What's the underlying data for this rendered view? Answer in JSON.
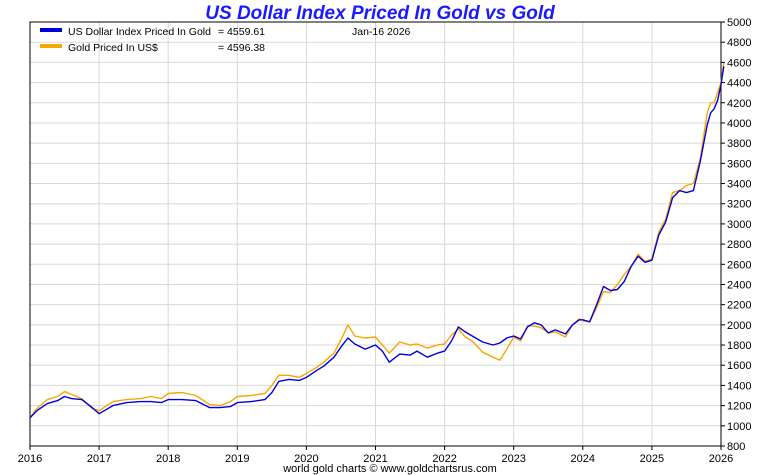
{
  "chart_data": {
    "type": "line",
    "title": "US Dollar Index Priced In Gold vs Gold",
    "date_label": "Jan-16  2026",
    "footer": "world gold charts © www.goldchartsrus.com",
    "xlim": [
      2016,
      2026
    ],
    "ylim": [
      800,
      5000
    ],
    "x_ticks": [
      2016,
      2017,
      2018,
      2019,
      2020,
      2021,
      2022,
      2023,
      2024,
      2025,
      2026
    ],
    "y_ticks": [
      800,
      1000,
      1200,
      1400,
      1600,
      1800,
      2000,
      2200,
      2400,
      2600,
      2800,
      3000,
      3200,
      3400,
      3600,
      3800,
      4000,
      4200,
      4400,
      4600,
      4800,
      5000
    ],
    "grid": true,
    "legend_position": "top-left",
    "colors": {
      "usd_series": "#0000dd",
      "gold_series": "#f5a800",
      "title": "#1a1aff",
      "grid": "#d8d8d8"
    },
    "series": [
      {
        "name": "US Dollar Index Priced In Gold",
        "value_text": "= 4559.61",
        "points": [
          [
            2016.0,
            1080
          ],
          [
            2016.1,
            1150
          ],
          [
            2016.25,
            1220
          ],
          [
            2016.4,
            1250
          ],
          [
            2016.5,
            1290
          ],
          [
            2016.6,
            1270
          ],
          [
            2016.75,
            1260
          ],
          [
            2016.9,
            1180
          ],
          [
            2017.0,
            1120
          ],
          [
            2017.2,
            1200
          ],
          [
            2017.4,
            1230
          ],
          [
            2017.6,
            1240
          ],
          [
            2017.75,
            1240
          ],
          [
            2017.9,
            1230
          ],
          [
            2018.0,
            1260
          ],
          [
            2018.2,
            1260
          ],
          [
            2018.4,
            1250
          ],
          [
            2018.6,
            1180
          ],
          [
            2018.75,
            1180
          ],
          [
            2018.9,
            1190
          ],
          [
            2019.0,
            1230
          ],
          [
            2019.2,
            1240
          ],
          [
            2019.4,
            1260
          ],
          [
            2019.5,
            1330
          ],
          [
            2019.6,
            1440
          ],
          [
            2019.75,
            1460
          ],
          [
            2019.9,
            1450
          ],
          [
            2020.0,
            1480
          ],
          [
            2020.15,
            1550
          ],
          [
            2020.25,
            1590
          ],
          [
            2020.4,
            1680
          ],
          [
            2020.5,
            1780
          ],
          [
            2020.6,
            1870
          ],
          [
            2020.7,
            1810
          ],
          [
            2020.85,
            1760
          ],
          [
            2021.0,
            1800
          ],
          [
            2021.1,
            1740
          ],
          [
            2021.2,
            1630
          ],
          [
            2021.35,
            1710
          ],
          [
            2021.5,
            1700
          ],
          [
            2021.6,
            1740
          ],
          [
            2021.75,
            1680
          ],
          [
            2021.9,
            1720
          ],
          [
            2022.0,
            1740
          ],
          [
            2022.1,
            1840
          ],
          [
            2022.2,
            1980
          ],
          [
            2022.3,
            1930
          ],
          [
            2022.4,
            1890
          ],
          [
            2022.55,
            1830
          ],
          [
            2022.7,
            1800
          ],
          [
            2022.8,
            1820
          ],
          [
            2022.9,
            1870
          ],
          [
            2023.0,
            1890
          ],
          [
            2023.1,
            1860
          ],
          [
            2023.2,
            1980
          ],
          [
            2023.3,
            2020
          ],
          [
            2023.4,
            2000
          ],
          [
            2023.5,
            1920
          ],
          [
            2023.6,
            1950
          ],
          [
            2023.75,
            1910
          ],
          [
            2023.85,
            2000
          ],
          [
            2023.95,
            2050
          ],
          [
            2024.0,
            2050
          ],
          [
            2024.1,
            2030
          ],
          [
            2024.2,
            2200
          ],
          [
            2024.3,
            2380
          ],
          [
            2024.4,
            2340
          ],
          [
            2024.5,
            2350
          ],
          [
            2024.6,
            2430
          ],
          [
            2024.7,
            2580
          ],
          [
            2024.8,
            2680
          ],
          [
            2024.9,
            2620
          ],
          [
            2025.0,
            2640
          ],
          [
            2025.1,
            2890
          ],
          [
            2025.2,
            3020
          ],
          [
            2025.3,
            3260
          ],
          [
            2025.4,
            3330
          ],
          [
            2025.5,
            3310
          ],
          [
            2025.6,
            3330
          ],
          [
            2025.7,
            3620
          ],
          [
            2025.8,
            3980
          ],
          [
            2025.85,
            4100
          ],
          [
            2025.9,
            4140
          ],
          [
            2025.95,
            4220
          ],
          [
            2026.0,
            4380
          ],
          [
            2026.04,
            4560
          ]
        ]
      },
      {
        "name": "Gold Priced In US$",
        "value_text": "= 4596.38",
        "points": [
          [
            2016.0,
            1080
          ],
          [
            2016.1,
            1170
          ],
          [
            2016.25,
            1260
          ],
          [
            2016.4,
            1290
          ],
          [
            2016.5,
            1340
          ],
          [
            2016.6,
            1310
          ],
          [
            2016.75,
            1270
          ],
          [
            2016.9,
            1170
          ],
          [
            2017.0,
            1150
          ],
          [
            2017.2,
            1240
          ],
          [
            2017.4,
            1260
          ],
          [
            2017.6,
            1270
          ],
          [
            2017.75,
            1290
          ],
          [
            2017.9,
            1270
          ],
          [
            2018.0,
            1320
          ],
          [
            2018.2,
            1330
          ],
          [
            2018.4,
            1300
          ],
          [
            2018.6,
            1210
          ],
          [
            2018.75,
            1200
          ],
          [
            2018.9,
            1240
          ],
          [
            2019.0,
            1290
          ],
          [
            2019.2,
            1300
          ],
          [
            2019.4,
            1320
          ],
          [
            2019.5,
            1400
          ],
          [
            2019.6,
            1500
          ],
          [
            2019.75,
            1500
          ],
          [
            2019.9,
            1480
          ],
          [
            2020.0,
            1520
          ],
          [
            2020.15,
            1580
          ],
          [
            2020.25,
            1630
          ],
          [
            2020.4,
            1720
          ],
          [
            2020.5,
            1850
          ],
          [
            2020.6,
            2000
          ],
          [
            2020.7,
            1890
          ],
          [
            2020.85,
            1870
          ],
          [
            2021.0,
            1880
          ],
          [
            2021.1,
            1800
          ],
          [
            2021.2,
            1720
          ],
          [
            2021.35,
            1830
          ],
          [
            2021.5,
            1800
          ],
          [
            2021.6,
            1810
          ],
          [
            2021.75,
            1770
          ],
          [
            2021.9,
            1800
          ],
          [
            2022.0,
            1810
          ],
          [
            2022.1,
            1900
          ],
          [
            2022.2,
            1960
          ],
          [
            2022.3,
            1880
          ],
          [
            2022.4,
            1840
          ],
          [
            2022.55,
            1730
          ],
          [
            2022.7,
            1680
          ],
          [
            2022.8,
            1650
          ],
          [
            2022.9,
            1760
          ],
          [
            2023.0,
            1880
          ],
          [
            2023.1,
            1840
          ],
          [
            2023.2,
            1990
          ],
          [
            2023.3,
            1990
          ],
          [
            2023.4,
            1970
          ],
          [
            2023.5,
            1920
          ],
          [
            2023.6,
            1930
          ],
          [
            2023.75,
            1880
          ],
          [
            2023.85,
            2000
          ],
          [
            2023.95,
            2060
          ],
          [
            2024.0,
            2040
          ],
          [
            2024.1,
            2030
          ],
          [
            2024.2,
            2170
          ],
          [
            2024.3,
            2330
          ],
          [
            2024.4,
            2320
          ],
          [
            2024.5,
            2400
          ],
          [
            2024.6,
            2500
          ],
          [
            2024.7,
            2580
          ],
          [
            2024.8,
            2700
          ],
          [
            2024.9,
            2630
          ],
          [
            2025.0,
            2650
          ],
          [
            2025.1,
            2920
          ],
          [
            2025.2,
            3050
          ],
          [
            2025.3,
            3310
          ],
          [
            2025.4,
            3330
          ],
          [
            2025.5,
            3380
          ],
          [
            2025.6,
            3400
          ],
          [
            2025.7,
            3650
          ],
          [
            2025.8,
            4100
          ],
          [
            2025.85,
            4200
          ],
          [
            2025.9,
            4200
          ],
          [
            2025.95,
            4300
          ],
          [
            2026.0,
            4400
          ],
          [
            2026.04,
            4596
          ]
        ]
      }
    ]
  }
}
